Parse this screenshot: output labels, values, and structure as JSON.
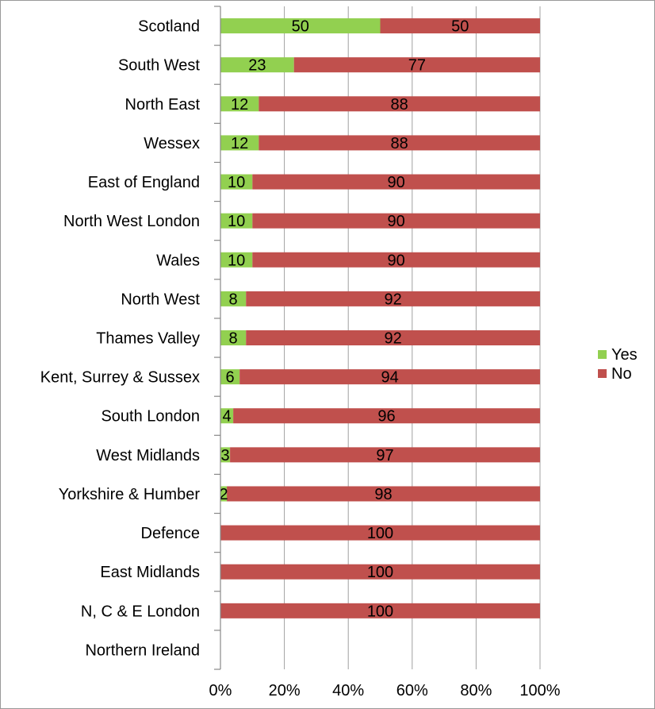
{
  "chart_data": {
    "type": "bar",
    "orientation": "horizontal",
    "stacked": "percent",
    "categories": [
      "Scotland",
      "South West",
      "North East",
      "Wessex",
      "East of England",
      "North West London",
      "Wales",
      "North West",
      "Thames Valley",
      "Kent, Surrey & Sussex",
      "South London",
      "West Midlands",
      "Yorkshire & Humber",
      "Defence",
      "East Midlands",
      "N, C & E London",
      "Northern Ireland"
    ],
    "series": [
      {
        "name": "Yes",
        "color": "#92D050",
        "values": [
          50,
          23,
          12,
          12,
          10,
          10,
          10,
          8,
          8,
          6,
          4,
          3,
          2,
          0,
          0,
          0,
          0
        ]
      },
      {
        "name": "No",
        "color": "#C0504D",
        "values": [
          50,
          77,
          88,
          88,
          90,
          90,
          90,
          92,
          92,
          94,
          96,
          97,
          98,
          100,
          100,
          100,
          0
        ]
      }
    ],
    "x_ticks": [
      "0%",
      "20%",
      "40%",
      "60%",
      "80%",
      "100%"
    ],
    "xlim": [
      0,
      100
    ],
    "grid": true,
    "legend_position": "right",
    "title": "",
    "xlabel": "",
    "ylabel": ""
  }
}
